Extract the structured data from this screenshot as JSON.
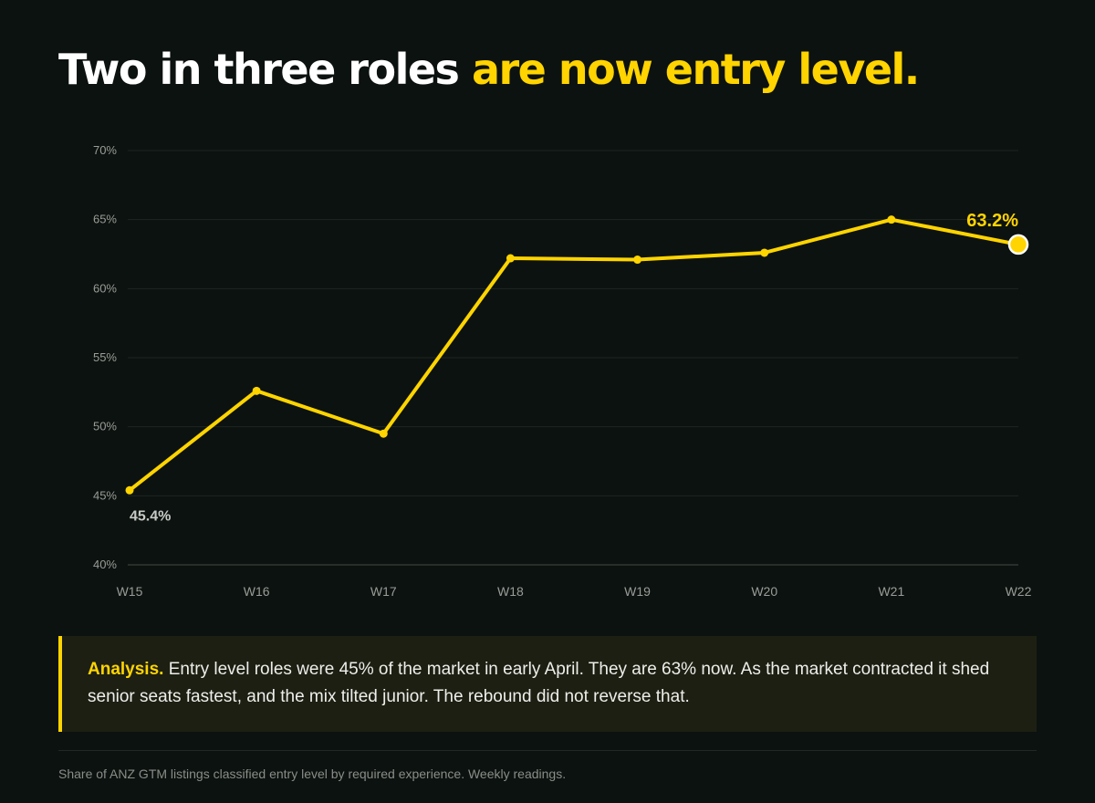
{
  "headline": {
    "lead": "Two in three roles",
    "accent": "are now entry level."
  },
  "colors": {
    "background": "#0c120f",
    "accent": "#ffd400",
    "panel": "#1c1f12",
    "axis_text": "#9a9c98"
  },
  "chart_data": {
    "type": "line",
    "title": "",
    "xlabel": "",
    "ylabel": "",
    "categories": [
      "W15",
      "W16",
      "W17",
      "W18",
      "W19",
      "W20",
      "W21",
      "W22"
    ],
    "series": [
      {
        "values": [
          45.4,
          52.6,
          49.5,
          62.2,
          62.1,
          62.6,
          65.0,
          63.2
        ]
      }
    ],
    "ylim": [
      40,
      70
    ],
    "y_ticks": [
      40,
      45,
      50,
      55,
      60,
      65,
      70
    ],
    "y_tick_labels": [
      "40%",
      "45%",
      "50%",
      "55%",
      "60%",
      "65%",
      "70%"
    ],
    "grid": true,
    "annotations": [
      {
        "category": "W15",
        "text": "45.4%"
      },
      {
        "category": "W22",
        "text": "63.2%"
      }
    ]
  },
  "analysis": {
    "label": "Analysis.",
    "text": "Entry level roles were 45% of the market in early April. They are 63% now. As the market contracted it shed senior seats fastest, and the mix tilted junior. The rebound did not reverse that."
  },
  "footnote": "Share of ANZ GTM listings classified entry level by required experience. Weekly readings."
}
